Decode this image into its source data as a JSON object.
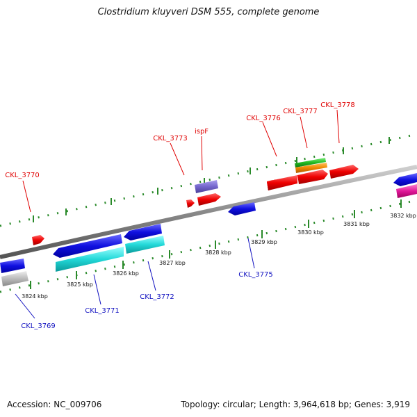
{
  "title": "Clostridium kluyveri DSM 555, complete genome",
  "footer": {
    "accession": "Accession: NC_009706",
    "topology": "Topology: circular; Length: 3,964,618 bp; Genes: 3,919"
  },
  "colors": {
    "backbone": "#888888",
    "ticks": "#2a8a2a",
    "forward_label": "#e00000",
    "reverse_label": "#1010c0"
  },
  "scale_labels": [
    "3824 kbp",
    "3825 kbp",
    "3826 kbp",
    "3827 kbp",
    "3828 kbp",
    "3829 kbp",
    "3830 kbp",
    "3831 kbp",
    "3832 kbp"
  ],
  "forward_genes": [
    "CKL_3770",
    "CKL_3773",
    "ispF",
    "CKL_3776",
    "CKL_3777",
    "CKL_3778"
  ],
  "reverse_genes": [
    "CKL_3769",
    "CKL_3771",
    "CKL_3772",
    "CKL_3775"
  ]
}
